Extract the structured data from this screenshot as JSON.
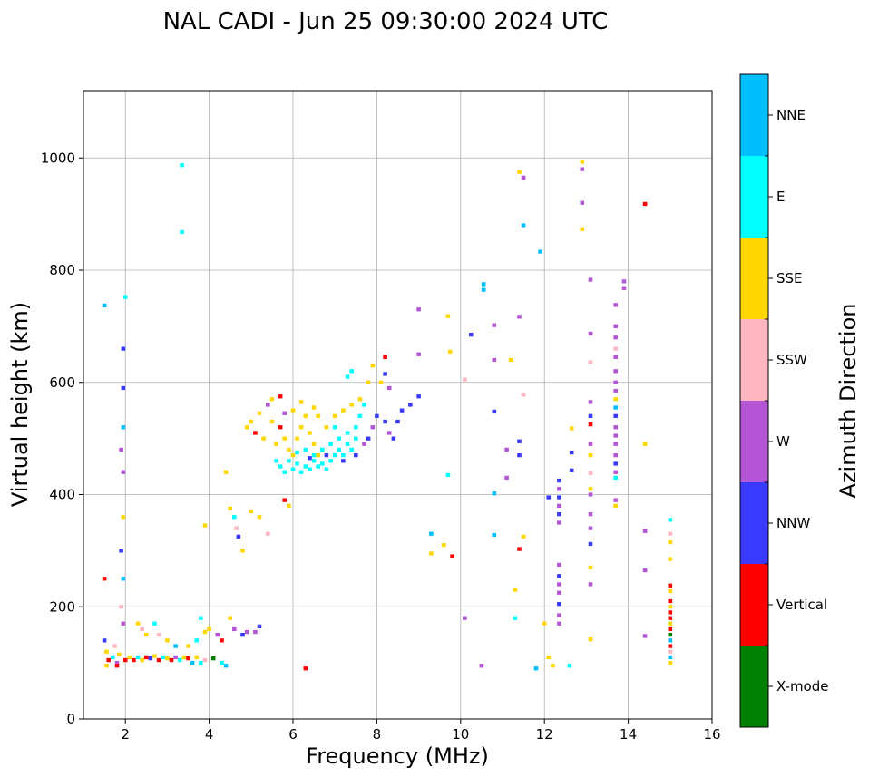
{
  "chart_data": {
    "type": "scatter",
    "title": "NAL CADI - Jun 25 09:30:00 2024 UTC",
    "xlabel": "Frequency (MHz)",
    "ylabel": "Virtual height (km)",
    "xlim": [
      1.0,
      16.0
    ],
    "ylim": [
      0,
      1120
    ],
    "xticks": [
      2,
      4,
      6,
      8,
      10,
      12,
      14,
      16
    ],
    "yticks": [
      0,
      200,
      400,
      600,
      800,
      1000
    ],
    "grid": true,
    "colorbar": {
      "label": "Azimuth Direction",
      "categories": [
        {
          "name": "X-mode",
          "color": "#008000"
        },
        {
          "name": "Vertical",
          "color": "#ff0000"
        },
        {
          "name": "NNW",
          "color": "#3a3aff"
        },
        {
          "name": "W",
          "color": "#b455d6"
        },
        {
          "name": "SSW",
          "color": "#ffb6c1"
        },
        {
          "name": "SSE",
          "color": "#ffd700"
        },
        {
          "name": "E",
          "color": "#00ffff"
        },
        {
          "name": "NNE",
          "color": "#00bfff"
        }
      ]
    },
    "points": [
      [
        1.5,
        737,
        "NNE"
      ],
      [
        1.5,
        250,
        "Vertical"
      ],
      [
        1.5,
        140,
        "NNW"
      ],
      [
        1.55,
        120,
        "SSE"
      ],
      [
        1.6,
        105,
        "Vertical"
      ],
      [
        1.55,
        95,
        "SSE"
      ],
      [
        1.7,
        110,
        "E"
      ],
      [
        1.75,
        130,
        "SSW"
      ],
      [
        1.8,
        100,
        "W"
      ],
      [
        1.85,
        115,
        "SSE"
      ],
      [
        1.8,
        95,
        "Vertical"
      ],
      [
        1.9,
        480,
        "W"
      ],
      [
        1.9,
        300,
        "NNW"
      ],
      [
        1.9,
        200,
        "SSW"
      ],
      [
        1.95,
        660,
        "NNW"
      ],
      [
        1.95,
        590,
        "NNW"
      ],
      [
        1.95,
        520,
        "NNE"
      ],
      [
        1.95,
        440,
        "W"
      ],
      [
        1.95,
        360,
        "SSE"
      ],
      [
        1.95,
        250,
        "NNE"
      ],
      [
        1.95,
        170,
        "W"
      ],
      [
        2.0,
        752,
        "E"
      ],
      [
        2.0,
        105,
        "Vertical"
      ],
      [
        2.1,
        110,
        "SSE"
      ],
      [
        2.2,
        105,
        "Vertical"
      ],
      [
        2.3,
        110,
        "E"
      ],
      [
        2.4,
        105,
        "SSE"
      ],
      [
        2.5,
        110,
        "Vertical"
      ],
      [
        2.6,
        108,
        "NNW"
      ],
      [
        2.7,
        112,
        "SSE"
      ],
      [
        2.8,
        105,
        "Vertical"
      ],
      [
        2.9,
        110,
        "E"
      ],
      [
        3.0,
        108,
        "SSE"
      ],
      [
        3.1,
        105,
        "Vertical"
      ],
      [
        3.2,
        110,
        "W"
      ],
      [
        3.3,
        105,
        "E"
      ],
      [
        3.4,
        110,
        "SSE"
      ],
      [
        3.5,
        108,
        "Vertical"
      ],
      [
        3.6,
        100,
        "NNE"
      ],
      [
        3.7,
        110,
        "SSE"
      ],
      [
        3.8,
        100,
        "E"
      ],
      [
        3.9,
        105,
        "SSW"
      ],
      [
        4.1,
        108,
        "X-mode"
      ],
      [
        4.3,
        100,
        "E"
      ],
      [
        4.4,
        95,
        "NNE"
      ],
      [
        2.3,
        170,
        "SSE"
      ],
      [
        2.4,
        160,
        "SSW"
      ],
      [
        2.5,
        150,
        "SSE"
      ],
      [
        2.7,
        170,
        "E"
      ],
      [
        2.8,
        150,
        "SSW"
      ],
      [
        3.0,
        140,
        "SSE"
      ],
      [
        3.2,
        130,
        "NNE"
      ],
      [
        3.5,
        130,
        "SSE"
      ],
      [
        3.7,
        140,
        "E"
      ],
      [
        3.8,
        180,
        "E"
      ],
      [
        3.9,
        155,
        "SSE"
      ],
      [
        4.0,
        160,
        "SSE"
      ],
      [
        4.2,
        150,
        "W"
      ],
      [
        4.3,
        140,
        "Vertical"
      ],
      [
        4.5,
        180,
        "SSE"
      ],
      [
        4.6,
        160,
        "W"
      ],
      [
        4.8,
        150,
        "NNW"
      ],
      [
        4.9,
        155,
        "W"
      ],
      [
        5.1,
        155,
        "W"
      ],
      [
        5.2,
        165,
        "NNW"
      ],
      [
        3.35,
        987,
        "E"
      ],
      [
        3.35,
        868,
        "E"
      ],
      [
        3.9,
        345,
        "SSE"
      ],
      [
        4.5,
        375,
        "SSE"
      ],
      [
        4.6,
        360,
        "E"
      ],
      [
        4.65,
        340,
        "SSW"
      ],
      [
        4.7,
        325,
        "NNW"
      ],
      [
        4.8,
        300,
        "SSE"
      ],
      [
        5.0,
        370,
        "SSE"
      ],
      [
        5.2,
        360,
        "SSE"
      ],
      [
        5.4,
        330,
        "SSW"
      ],
      [
        4.4,
        440,
        "SSE"
      ],
      [
        4.9,
        520,
        "SSE"
      ],
      [
        5.0,
        530,
        "SSE"
      ],
      [
        5.1,
        510,
        "Vertical"
      ],
      [
        5.2,
        545,
        "SSE"
      ],
      [
        5.3,
        500,
        "SSE"
      ],
      [
        5.4,
        560,
        "W"
      ],
      [
        5.5,
        530,
        "SSE"
      ],
      [
        5.6,
        490,
        "SSE"
      ],
      [
        5.7,
        520,
        "Vertical"
      ],
      [
        5.8,
        500,
        "SSE"
      ],
      [
        5.9,
        480,
        "SSE"
      ],
      [
        6.0,
        470,
        "SSE"
      ],
      [
        6.1,
        500,
        "SSE"
      ],
      [
        6.2,
        520,
        "SSE"
      ],
      [
        6.3,
        540,
        "SSE"
      ],
      [
        6.4,
        510,
        "SSE"
      ],
      [
        6.5,
        490,
        "SSE"
      ],
      [
        6.6,
        470,
        "SSE"
      ],
      [
        6.8,
        520,
        "SSE"
      ],
      [
        7.0,
        540,
        "SSE"
      ],
      [
        7.2,
        550,
        "SSE"
      ],
      [
        7.4,
        560,
        "SSE"
      ],
      [
        7.6,
        570,
        "SSE"
      ],
      [
        7.8,
        600,
        "SSE"
      ],
      [
        7.9,
        630,
        "SSE"
      ],
      [
        5.5,
        570,
        "SSE"
      ],
      [
        5.7,
        575,
        "Vertical"
      ],
      [
        6.2,
        565,
        "SSE"
      ],
      [
        6.5,
        555,
        "SSE"
      ],
      [
        6.0,
        550,
        "SSE"
      ],
      [
        5.8,
        545,
        "W"
      ],
      [
        6.6,
        540,
        "SSE"
      ],
      [
        5.8,
        390,
        "Vertical"
      ],
      [
        5.9,
        380,
        "SSE"
      ],
      [
        5.6,
        460,
        "E"
      ],
      [
        5.7,
        450,
        "E"
      ],
      [
        5.8,
        440,
        "E"
      ],
      [
        5.9,
        460,
        "E"
      ],
      [
        6.0,
        445,
        "E"
      ],
      [
        6.1,
        455,
        "E"
      ],
      [
        6.2,
        440,
        "E"
      ],
      [
        6.3,
        450,
        "E"
      ],
      [
        6.4,
        445,
        "E"
      ],
      [
        6.5,
        460,
        "E"
      ],
      [
        6.6,
        450,
        "E"
      ],
      [
        6.7,
        455,
        "E"
      ],
      [
        6.8,
        445,
        "E"
      ],
      [
        6.9,
        460,
        "E"
      ],
      [
        7.0,
        470,
        "E"
      ],
      [
        7.1,
        480,
        "E"
      ],
      [
        7.2,
        470,
        "E"
      ],
      [
        7.3,
        490,
        "E"
      ],
      [
        7.4,
        480,
        "E"
      ],
      [
        7.5,
        500,
        "E"
      ],
      [
        6.1,
        475,
        "E"
      ],
      [
        6.3,
        480,
        "E"
      ],
      [
        6.5,
        470,
        "E"
      ],
      [
        6.7,
        480,
        "E"
      ],
      [
        6.9,
        490,
        "E"
      ],
      [
        7.1,
        500,
        "E"
      ],
      [
        7.3,
        510,
        "E"
      ],
      [
        7.5,
        520,
        "E"
      ],
      [
        7.6,
        540,
        "E"
      ],
      [
        7.7,
        560,
        "E"
      ],
      [
        7.0,
        520,
        "E"
      ],
      [
        6.4,
        465,
        "NNW"
      ],
      [
        6.8,
        470,
        "NNW"
      ],
      [
        7.2,
        460,
        "NNW"
      ],
      [
        7.5,
        470,
        "NNW"
      ],
      [
        7.7,
        490,
        "W"
      ],
      [
        7.8,
        500,
        "NNW"
      ],
      [
        7.9,
        520,
        "W"
      ],
      [
        8.0,
        540,
        "NNW"
      ],
      [
        8.2,
        530,
        "NNW"
      ],
      [
        8.3,
        510,
        "W"
      ],
      [
        8.4,
        500,
        "NNW"
      ],
      [
        8.5,
        530,
        "NNW"
      ],
      [
        8.6,
        550,
        "NNW"
      ],
      [
        8.8,
        560,
        "NNW"
      ],
      [
        9.0,
        575,
        "NNW"
      ],
      [
        8.1,
        600,
        "SSE"
      ],
      [
        8.2,
        615,
        "NNW"
      ],
      [
        8.2,
        645,
        "Vertical"
      ],
      [
        7.4,
        620,
        "E"
      ],
      [
        7.3,
        610,
        "E"
      ],
      [
        8.3,
        590,
        "W"
      ],
      [
        9.0,
        730,
        "W"
      ],
      [
        9.0,
        650,
        "W"
      ],
      [
        9.3,
        330,
        "NNE"
      ],
      [
        9.3,
        295,
        "SSE"
      ],
      [
        9.6,
        310,
        "SSE"
      ],
      [
        9.7,
        435,
        "E"
      ],
      [
        9.7,
        718,
        "SSE"
      ],
      [
        9.75,
        655,
        "SSE"
      ],
      [
        9.8,
        290,
        "Vertical"
      ],
      [
        10.1,
        605,
        "SSW"
      ],
      [
        10.1,
        180,
        "W"
      ],
      [
        10.25,
        685,
        "NNW"
      ],
      [
        10.5,
        95,
        "W"
      ],
      [
        10.55,
        775,
        "NNE"
      ],
      [
        10.55,
        765,
        "NNE"
      ],
      [
        10.8,
        702,
        "W"
      ],
      [
        10.8,
        640,
        "W"
      ],
      [
        10.8,
        548,
        "NNW"
      ],
      [
        10.8,
        402,
        "NNE"
      ],
      [
        10.8,
        328,
        "NNE"
      ],
      [
        11.1,
        480,
        "W"
      ],
      [
        11.1,
        430,
        "W"
      ],
      [
        11.2,
        640,
        "SSE"
      ],
      [
        11.3,
        230,
        "SSE"
      ],
      [
        11.3,
        180,
        "E"
      ],
      [
        11.4,
        975,
        "SSE"
      ],
      [
        11.5,
        965,
        "W"
      ],
      [
        11.5,
        880,
        "NNE"
      ],
      [
        11.4,
        717,
        "W"
      ],
      [
        11.4,
        495,
        "NNW"
      ],
      [
        11.4,
        470,
        "NNW"
      ],
      [
        11.4,
        303,
        "Vertical"
      ],
      [
        11.5,
        578,
        "SSW"
      ],
      [
        11.5,
        325,
        "SSE"
      ],
      [
        11.8,
        90,
        "NNE"
      ],
      [
        11.9,
        833,
        "NNE"
      ],
      [
        12.0,
        170,
        "SSE"
      ],
      [
        12.1,
        395,
        "NNW"
      ],
      [
        12.1,
        110,
        "SSE"
      ],
      [
        12.2,
        95,
        "SSE"
      ],
      [
        12.35,
        425,
        "NNW"
      ],
      [
        12.35,
        410,
        "W"
      ],
      [
        12.35,
        395,
        "NNW"
      ],
      [
        12.35,
        380,
        "W"
      ],
      [
        12.35,
        365,
        "NNW"
      ],
      [
        12.35,
        350,
        "W"
      ],
      [
        12.35,
        275,
        "W"
      ],
      [
        12.35,
        255,
        "NNW"
      ],
      [
        12.35,
        240,
        "W"
      ],
      [
        12.35,
        225,
        "W"
      ],
      [
        12.35,
        205,
        "NNW"
      ],
      [
        12.35,
        185,
        "W"
      ],
      [
        12.35,
        170,
        "W"
      ],
      [
        12.6,
        95,
        "E"
      ],
      [
        12.65,
        518,
        "SSE"
      ],
      [
        12.65,
        475,
        "NNW"
      ],
      [
        12.65,
        443,
        "NNW"
      ],
      [
        12.9,
        993,
        "SSE"
      ],
      [
        12.9,
        980,
        "W"
      ],
      [
        12.9,
        920,
        "W"
      ],
      [
        12.9,
        873,
        "SSE"
      ],
      [
        13.1,
        783,
        "W"
      ],
      [
        13.1,
        687,
        "W"
      ],
      [
        13.1,
        636,
        "SSW"
      ],
      [
        13.1,
        565,
        "W"
      ],
      [
        13.1,
        540,
        "NNW"
      ],
      [
        13.1,
        525,
        "Vertical"
      ],
      [
        13.1,
        490,
        "W"
      ],
      [
        13.1,
        470,
        "SSE"
      ],
      [
        13.1,
        438,
        "SSW"
      ],
      [
        13.1,
        410,
        "SSE"
      ],
      [
        13.1,
        400,
        "W"
      ],
      [
        13.1,
        365,
        "W"
      ],
      [
        13.1,
        340,
        "W"
      ],
      [
        13.1,
        312,
        "NNW"
      ],
      [
        13.1,
        270,
        "SSE"
      ],
      [
        13.1,
        240,
        "W"
      ],
      [
        13.1,
        142,
        "SSE"
      ],
      [
        13.7,
        738,
        "W"
      ],
      [
        13.7,
        700,
        "W"
      ],
      [
        13.7,
        680,
        "W"
      ],
      [
        13.7,
        660,
        "SSW"
      ],
      [
        13.7,
        645,
        "W"
      ],
      [
        13.7,
        620,
        "W"
      ],
      [
        13.7,
        600,
        "W"
      ],
      [
        13.7,
        585,
        "W"
      ],
      [
        13.7,
        570,
        "SSE"
      ],
      [
        13.7,
        555,
        "NNE"
      ],
      [
        13.7,
        540,
        "NNW"
      ],
      [
        13.7,
        520,
        "W"
      ],
      [
        13.7,
        505,
        "W"
      ],
      [
        13.7,
        490,
        "W"
      ],
      [
        13.7,
        470,
        "W"
      ],
      [
        13.7,
        455,
        "NNW"
      ],
      [
        13.7,
        440,
        "W"
      ],
      [
        13.7,
        430,
        "E"
      ],
      [
        13.7,
        390,
        "W"
      ],
      [
        13.7,
        380,
        "SSE"
      ],
      [
        13.9,
        780,
        "W"
      ],
      [
        13.9,
        768,
        "W"
      ],
      [
        14.4,
        918,
        "Vertical"
      ],
      [
        14.4,
        490,
        "SSE"
      ],
      [
        14.4,
        335,
        "W"
      ],
      [
        14.4,
        265,
        "W"
      ],
      [
        14.4,
        148,
        "W"
      ],
      [
        15.0,
        355,
        "E"
      ],
      [
        15.0,
        330,
        "SSW"
      ],
      [
        15.0,
        315,
        "SSE"
      ],
      [
        15.0,
        285,
        "SSE"
      ],
      [
        15.0,
        238,
        "Vertical"
      ],
      [
        15.0,
        228,
        "SSE"
      ],
      [
        15.0,
        210,
        "Vertical"
      ],
      [
        15.0,
        200,
        "SSE"
      ],
      [
        15.0,
        190,
        "Vertical"
      ],
      [
        15.0,
        180,
        "Vertical"
      ],
      [
        15.0,
        170,
        "SSE"
      ],
      [
        15.0,
        160,
        "Vertical"
      ],
      [
        15.0,
        150,
        "X-mode"
      ],
      [
        15.0,
        140,
        "NNE"
      ],
      [
        15.0,
        130,
        "Vertical"
      ],
      [
        15.0,
        120,
        "SSW"
      ],
      [
        15.0,
        110,
        "NNE"
      ],
      [
        15.0,
        100,
        "SSE"
      ],
      [
        6.3,
        90,
        "Vertical"
      ]
    ]
  }
}
